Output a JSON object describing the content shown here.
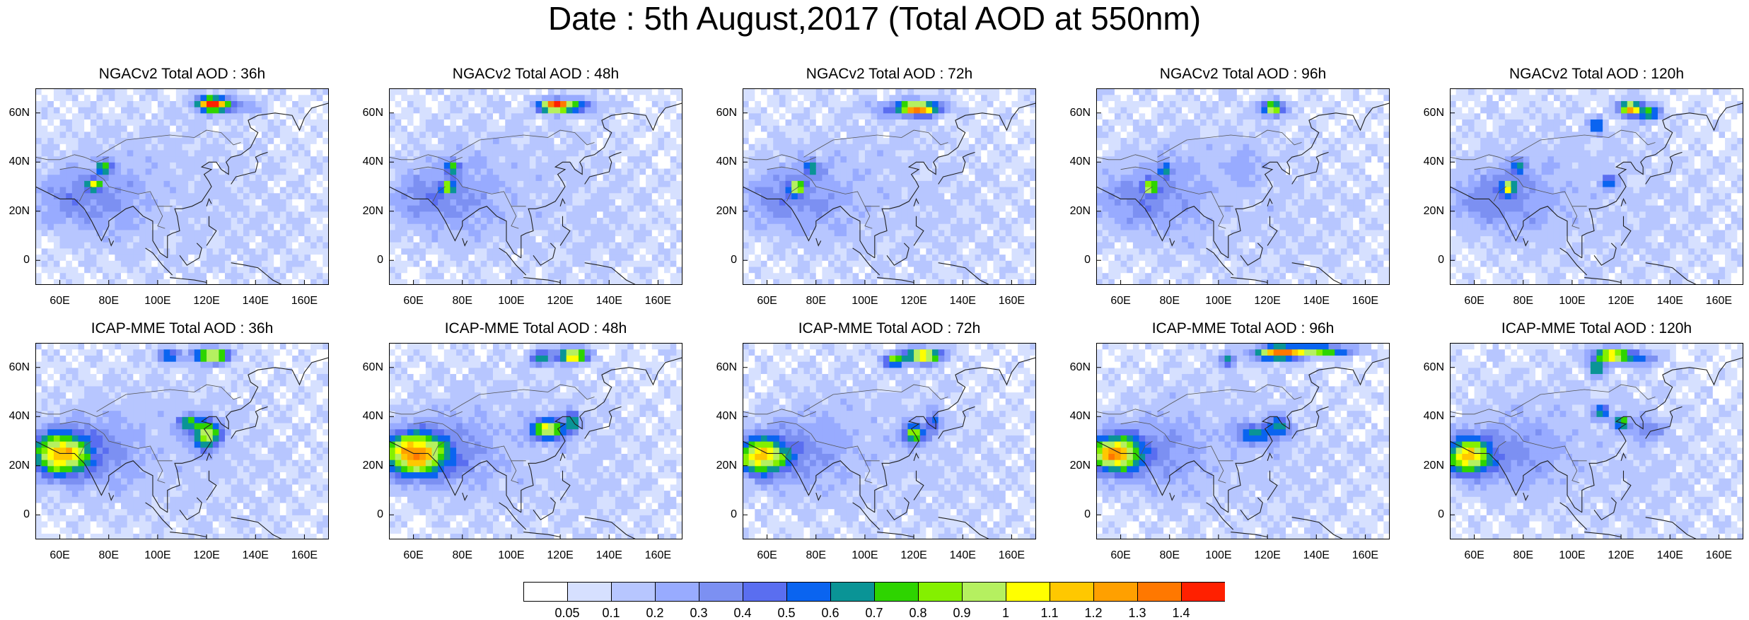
{
  "title": "Date : 5th August,2017 (Total AOD at 550nm)",
  "panels": [
    {
      "title": "NGACv2 Total AOD : 36h"
    },
    {
      "title": "NGACv2 Total AOD : 48h"
    },
    {
      "title": "NGACv2 Total AOD : 72h"
    },
    {
      "title": "NGACv2 Total AOD : 96h"
    },
    {
      "title": "NGACv2 Total AOD : 120h"
    },
    {
      "title": "ICAP-MME Total AOD : 36h"
    },
    {
      "title": "ICAP-MME Total AOD : 48h"
    },
    {
      "title": "ICAP-MME Total AOD : 72h"
    },
    {
      "title": "ICAP-MME Total AOD : 96h"
    },
    {
      "title": "ICAP-MME Total AOD : 120h"
    }
  ],
  "axes": {
    "lon_labels": [
      "60E",
      "80E",
      "100E",
      "120E",
      "140E",
      "160E"
    ],
    "lon_values": [
      60,
      80,
      100,
      120,
      140,
      160
    ],
    "lat_labels": [
      "60N",
      "40N",
      "20N",
      "0"
    ],
    "lat_values": [
      60,
      40,
      20,
      0
    ],
    "lon_range": [
      50,
      170
    ],
    "lat_range": [
      -10,
      70
    ]
  },
  "colorbar": {
    "colors": [
      "#ffffff",
      "#d6e0ff",
      "#b7c6ff",
      "#98abff",
      "#7c90f2",
      "#5a6ef0",
      "#0a64f0",
      "#0a9496",
      "#2ed400",
      "#84f000",
      "#b5f060",
      "#ffff00",
      "#ffc800",
      "#ffa000",
      "#ff7800",
      "#ff2000"
    ],
    "labels": [
      "0.05",
      "0.1",
      "0.2",
      "0.3",
      "0.4",
      "0.5",
      "0.6",
      "0.7",
      "0.8",
      "0.9",
      "1",
      "1.1",
      "1.2",
      "1.3",
      "1.4"
    ]
  }
}
